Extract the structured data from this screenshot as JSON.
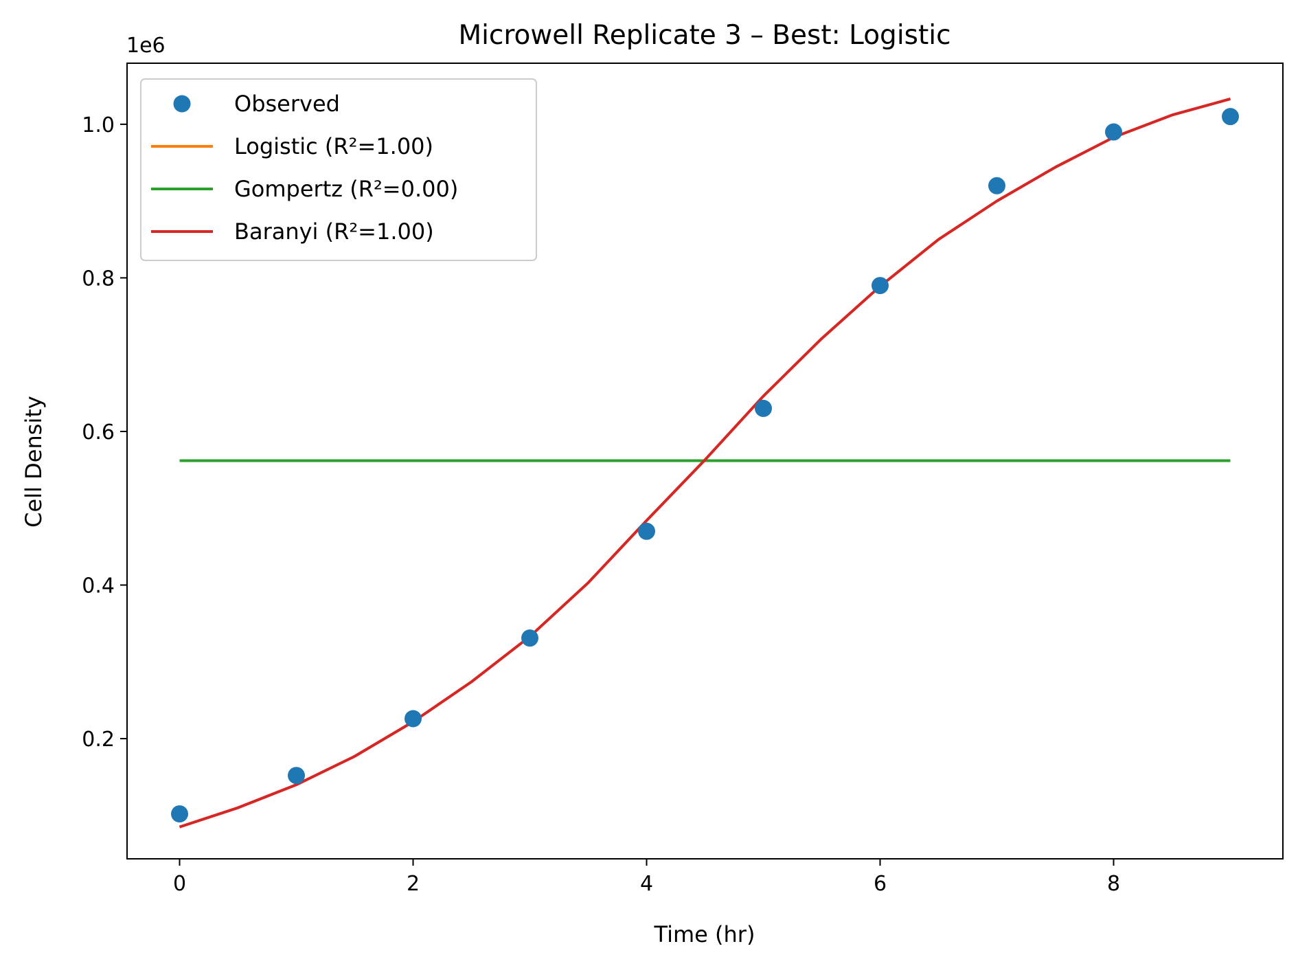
{
  "chart_data": {
    "type": "line",
    "title": "Microwell Replicate 3 – Best: Logistic",
    "xlabel": "Time (hr)",
    "ylabel": "Cell Density",
    "y_offset_label": "1e6",
    "xlim": [
      -0.45,
      9.45
    ],
    "ylim": [
      0.0435,
      1.0795
    ],
    "xticks": [
      0,
      2,
      4,
      6,
      8
    ],
    "xtick_labels": [
      "0",
      "2",
      "4",
      "6",
      "8"
    ],
    "yticks": [
      0.2,
      0.4,
      0.6,
      0.8,
      1.0
    ],
    "ytick_labels": [
      "0.2",
      "0.4",
      "0.6",
      "0.8",
      "1.0"
    ],
    "grid": false,
    "legend_position": "upper-left",
    "series": [
      {
        "name": "Observed",
        "kind": "markers",
        "color": "#1f77b4",
        "x": [
          0,
          1,
          2,
          3,
          4,
          5,
          6,
          7,
          8,
          9
        ],
        "y": [
          0.102,
          0.152,
          0.226,
          0.331,
          0.47,
          0.63,
          0.79,
          0.92,
          0.99,
          1.01
        ]
      },
      {
        "name": "Logistic (R²=1.00)",
        "kind": "line",
        "color": "#ff7f0e",
        "x": [
          0,
          0.5,
          1,
          1.5,
          2,
          2.5,
          3,
          3.5,
          4,
          4.5,
          5,
          5.5,
          6,
          6.5,
          7,
          7.5,
          8,
          8.5,
          9
        ],
        "y": [
          0.085,
          0.11,
          0.14,
          0.177,
          0.222,
          0.274,
          0.333,
          0.403,
          0.484,
          0.563,
          0.646,
          0.721,
          0.789,
          0.85,
          0.9,
          0.944,
          0.983,
          1.012,
          1.033
        ]
      },
      {
        "name": "Gompertz (R²=0.00)",
        "kind": "line",
        "color": "#2ca02c",
        "x": [
          0,
          9
        ],
        "y": [
          0.562,
          0.562
        ]
      },
      {
        "name": "Baranyi (R²=1.00)",
        "kind": "line",
        "color": "#d62728",
        "x": [
          0,
          0.5,
          1,
          1.5,
          2,
          2.5,
          3,
          3.5,
          4,
          4.5,
          5,
          5.5,
          6,
          6.5,
          7,
          7.5,
          8,
          8.5,
          9
        ],
        "y": [
          0.085,
          0.11,
          0.14,
          0.177,
          0.222,
          0.274,
          0.333,
          0.403,
          0.484,
          0.563,
          0.646,
          0.721,
          0.789,
          0.85,
          0.9,
          0.944,
          0.983,
          1.012,
          1.033
        ]
      }
    ]
  }
}
